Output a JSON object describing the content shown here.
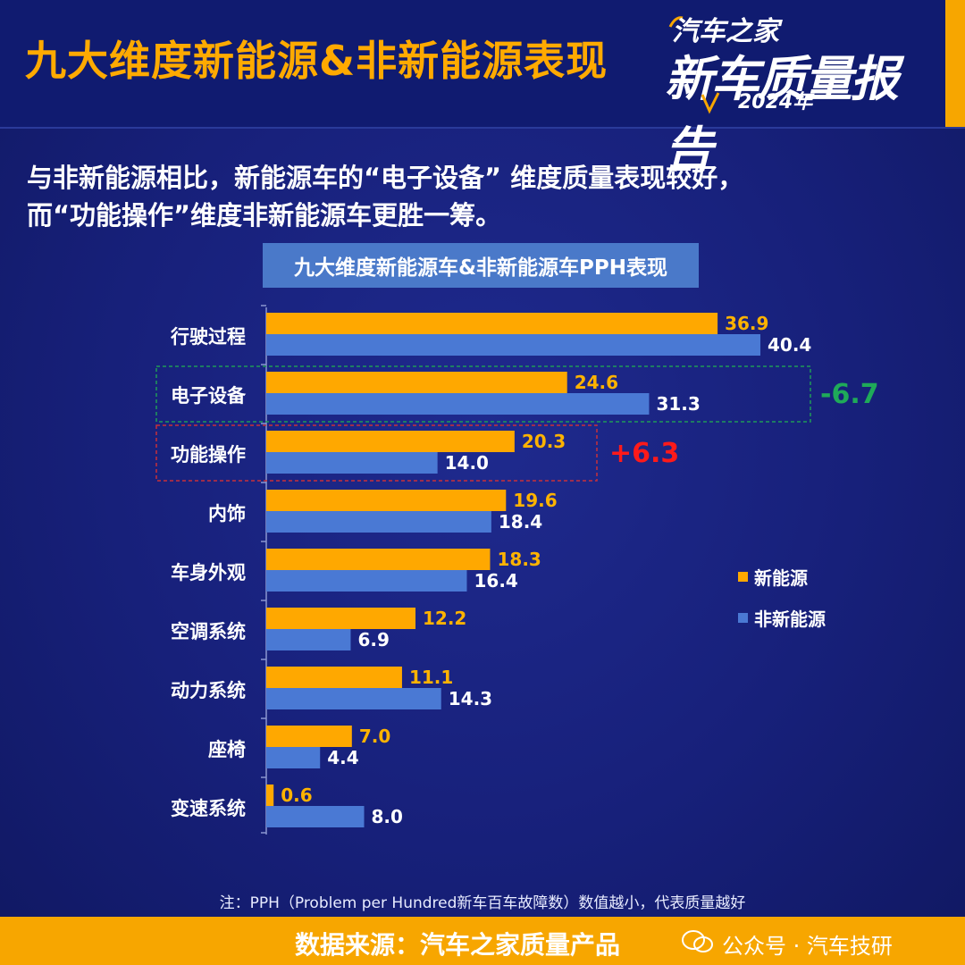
{
  "header": {
    "title": "九大维度新能源&非新能源表现",
    "brand": {
      "line1": "汽车之家",
      "line2": "新车质量报告",
      "year": "2024年"
    }
  },
  "subtitle": {
    "line1": "与非新能源相比，新能源车的“电子设备” 维度质量表现较好，",
    "line2": "而“功能操作”维度非新能源车更胜一筹。"
  },
  "colors": {
    "new_energy": "#ffa800",
    "non_new_energy": "#4a79d4",
    "green": "#1faa59",
    "red": "#ff1a1a"
  },
  "chart_data": {
    "type": "bar",
    "orientation": "horizontal",
    "title": "九大维度新能源车&非新能源车PPH表现",
    "categories": [
      "行驶过程",
      "电子设备",
      "功能操作",
      "内饰",
      "车身外观",
      "空调系统",
      "动力系统",
      "座椅",
      "变速系统"
    ],
    "series": [
      {
        "name": "新能源",
        "values": [
          36.9,
          24.6,
          20.3,
          19.6,
          18.3,
          12.2,
          11.1,
          7.0,
          0.6
        ],
        "labels": [
          "36.9",
          "24.6",
          "20.3",
          "19.6",
          "18.3",
          "12.2",
          "11.1",
          "7.0",
          "0.6"
        ]
      },
      {
        "name": "非新能源",
        "values": [
          40.4,
          31.3,
          14.0,
          18.4,
          16.4,
          6.9,
          14.3,
          4.4,
          8.0
        ],
        "labels": [
          "40.4",
          "31.3",
          "14.0",
          "18.4",
          "16.4",
          "6.9",
          "14.3",
          "4.4",
          "8.0"
        ]
      }
    ],
    "xlim": [
      0,
      42
    ],
    "annotations": [
      {
        "category": "电子设备",
        "text": "-6.7",
        "color": "green"
      },
      {
        "category": "功能操作",
        "text": "+6.3",
        "color": "red"
      }
    ],
    "legend_position": "right"
  },
  "footnote": "注：PPH（Problem per Hundred新车百车故障数）数值越小，代表质量越好",
  "footer": {
    "source": "数据来源：汽车之家质量产品",
    "watermark": "公众号 · 汽车技研"
  }
}
